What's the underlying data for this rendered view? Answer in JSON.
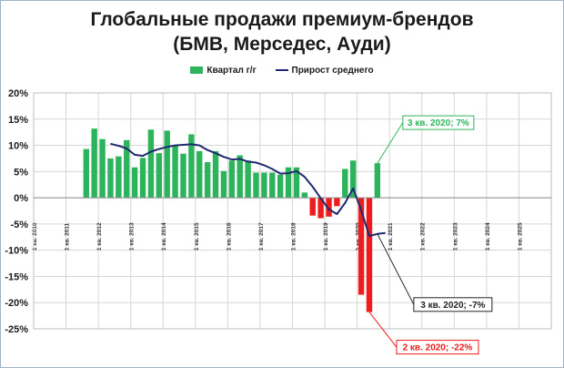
{
  "title_line1": "Глобальные продажи премиум-брендов",
  "title_line2": "(БМВ, Мерседес, Ауди)",
  "colors": {
    "bar_pos": "#2db35c",
    "bar_neg": "#ee1c1c",
    "line": "#1f2a6e",
    "grid": "#d6d6d6"
  },
  "chart_data": {
    "type": "bar",
    "legend": {
      "bars": "Квартал г/г",
      "line": "Прирост среднего"
    },
    "ylim": [
      -25,
      20
    ],
    "yticks": [
      20,
      15,
      10,
      5,
      0,
      -5,
      -10,
      -15,
      -20,
      -25
    ],
    "ytick_labels": [
      "20%",
      "15%",
      "10%",
      "5%",
      "0%",
      "-5%",
      "-10%",
      "-15%",
      "-20%",
      "-25%"
    ],
    "xlim": [
      2010.0,
      2026.0
    ],
    "xticks": [
      2010,
      2011,
      2012,
      2013,
      2014,
      2015,
      2016,
      2017,
      2018,
      2019,
      2020,
      2021,
      2022,
      2023,
      2024,
      2025
    ],
    "xtick_labels": [
      "1 кв. 2010",
      "1 кв. 2011",
      "1 кв. 2012",
      "1 кв. 2013",
      "1 кв. 2014",
      "1 кв. 2015",
      "1 кв. 2016",
      "1 кв. 2017",
      "1 кв. 2018",
      "1 кв. 2019",
      "1 кв. 2020",
      "1 кв. 2021",
      "1 кв. 2022",
      "1 кв. 2023",
      "1 кв. 2024",
      "1 кв. 2025"
    ],
    "bars": [
      {
        "q": "2011Q3",
        "value": 9.3
      },
      {
        "q": "2011Q4",
        "value": 13.2
      },
      {
        "q": "2012Q1",
        "value": 11.2
      },
      {
        "q": "2012Q2",
        "value": 7.5
      },
      {
        "q": "2012Q3",
        "value": 7.9
      },
      {
        "q": "2012Q4",
        "value": 11.0
      },
      {
        "q": "2013Q1",
        "value": 5.8
      },
      {
        "q": "2013Q2",
        "value": 7.6
      },
      {
        "q": "2013Q3",
        "value": 13.0
      },
      {
        "q": "2013Q4",
        "value": 8.5
      },
      {
        "q": "2014Q1",
        "value": 12.8
      },
      {
        "q": "2014Q2",
        "value": 10.1
      },
      {
        "q": "2014Q3",
        "value": 8.4
      },
      {
        "q": "2014Q4",
        "value": 12.1
      },
      {
        "q": "2015Q1",
        "value": 8.9
      },
      {
        "q": "2015Q2",
        "value": 6.8
      },
      {
        "q": "2015Q3",
        "value": 8.9
      },
      {
        "q": "2015Q4",
        "value": 5.1
      },
      {
        "q": "2016Q1",
        "value": 7.1
      },
      {
        "q": "2016Q2",
        "value": 8.1
      },
      {
        "q": "2016Q3",
        "value": 7.1
      },
      {
        "q": "2016Q4",
        "value": 4.8
      },
      {
        "q": "2017Q1",
        "value": 4.8
      },
      {
        "q": "2017Q2",
        "value": 4.8
      },
      {
        "q": "2017Q3",
        "value": 4.4
      },
      {
        "q": "2017Q4",
        "value": 5.8
      },
      {
        "q": "2018Q1",
        "value": 5.8
      },
      {
        "q": "2018Q2",
        "value": 1.0
      },
      {
        "q": "2018Q3",
        "value": -3.4
      },
      {
        "q": "2018Q4",
        "value": -3.9
      },
      {
        "q": "2019Q1",
        "value": -3.6
      },
      {
        "q": "2019Q2",
        "value": -1.6
      },
      {
        "q": "2019Q3",
        "value": 5.5
      },
      {
        "q": "2019Q4",
        "value": 7.1
      },
      {
        "q": "2020Q1",
        "value": -18.5
      },
      {
        "q": "2020Q2",
        "value": -21.8
      },
      {
        "q": "2020Q3",
        "value": 6.6
      }
    ],
    "line": [
      {
        "q": "2012Q2",
        "value": 10.3
      },
      {
        "q": "2012Q3",
        "value": 9.9
      },
      {
        "q": "2012Q4",
        "value": 9.4
      },
      {
        "q": "2013Q1",
        "value": 8.2
      },
      {
        "q": "2013Q2",
        "value": 8.0
      },
      {
        "q": "2013Q3",
        "value": 8.8
      },
      {
        "q": "2013Q4",
        "value": 9.3
      },
      {
        "q": "2014Q1",
        "value": 9.7
      },
      {
        "q": "2014Q2",
        "value": 10.0
      },
      {
        "q": "2014Q3",
        "value": 10.1
      },
      {
        "q": "2014Q4",
        "value": 10.2
      },
      {
        "q": "2015Q1",
        "value": 10.0
      },
      {
        "q": "2015Q2",
        "value": 9.1
      },
      {
        "q": "2015Q3",
        "value": 8.5
      },
      {
        "q": "2015Q4",
        "value": 7.8
      },
      {
        "q": "2016Q1",
        "value": 7.3
      },
      {
        "q": "2016Q2",
        "value": 7.4
      },
      {
        "q": "2016Q3",
        "value": 6.9
      },
      {
        "q": "2016Q4",
        "value": 6.7
      },
      {
        "q": "2017Q1",
        "value": 6.2
      },
      {
        "q": "2017Q2",
        "value": 5.5
      },
      {
        "q": "2017Q3",
        "value": 4.6
      },
      {
        "q": "2017Q4",
        "value": 4.7
      },
      {
        "q": "2018Q1",
        "value": 5.1
      },
      {
        "q": "2018Q2",
        "value": 4.0
      },
      {
        "q": "2018Q3",
        "value": 2.1
      },
      {
        "q": "2018Q4",
        "value": -0.1
      },
      {
        "q": "2019Q1",
        "value": -2.2
      },
      {
        "q": "2019Q2",
        "value": -3.1
      },
      {
        "q": "2019Q3",
        "value": -1.0
      },
      {
        "q": "2019Q4",
        "value": 1.8
      },
      {
        "q": "2020Q1",
        "value": -2.4
      },
      {
        "q": "2020Q2",
        "value": -7.3
      },
      {
        "q": "2020Q3",
        "value": -6.9
      },
      {
        "q": "2020Q4",
        "value": -6.7
      }
    ],
    "annotations": [
      {
        "text": "3 кв. 2020; 7%",
        "q": "2020Q3",
        "value": 6.6,
        "color": "#2db35c"
      },
      {
        "text": "3 кв. 2020; -7%",
        "q": "2020Q3",
        "value": -6.9,
        "color": "#222222"
      },
      {
        "text": "2 кв. 2020; -22%",
        "q": "2020Q2",
        "value": -21.8,
        "color": "#ee1c1c"
      }
    ]
  }
}
